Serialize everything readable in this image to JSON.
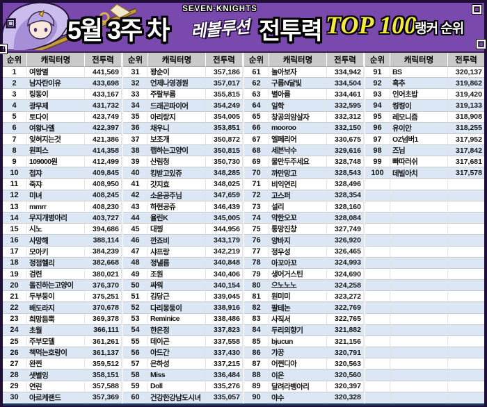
{
  "banner": {
    "week": "5월 3주 차",
    "logo_line1": "SEVEN·KNIGHTS",
    "logo_line2": "레볼루션",
    "metric": "전투력",
    "top": "TOP 100",
    "suffix": "랭커 순위"
  },
  "colors": {
    "banner_bg": "#7a49ae",
    "frame": "#1f0e35",
    "header_bg": "#c9c9c9",
    "row_alt_bg": "#dbe7f4",
    "top_accent": "#f3ea3d",
    "table_bottom_border": "#1b3a68"
  },
  "table": {
    "headers": [
      "순위",
      "캐릭터명",
      "전투력"
    ],
    "visible_rows": 30,
    "entries": [
      {
        "rank": "1",
        "name": "여왕별",
        "power": "441,569"
      },
      {
        "rank": "2",
        "name": "남자란이유",
        "power": "433,698"
      },
      {
        "rank": "3",
        "name": "링동이",
        "power": "433,167"
      },
      {
        "rank": "4",
        "name": "광무제",
        "power": "431,732"
      },
      {
        "rank": "5",
        "name": "토다이",
        "power": "423,749"
      },
      {
        "rank": "6",
        "name": "여왕나엘",
        "power": "422,397"
      },
      {
        "rank": "7",
        "name": "잊혀지는것",
        "power": "421,386"
      },
      {
        "rank": "8",
        "name": "원피스",
        "power": "414,358"
      },
      {
        "rank": "9",
        "name": "109000원",
        "power": "412,499"
      },
      {
        "rank": "10",
        "name": "접쟈",
        "power": "409,845"
      },
      {
        "rank": "11",
        "name": "죽쟈",
        "power": "408,950"
      },
      {
        "rank": "12",
        "name": "미녀",
        "power": "408,245"
      },
      {
        "rank": "13",
        "name": "mmrr",
        "power": "408,230"
      },
      {
        "rank": "14",
        "name": "무지개병아리",
        "power": "403,727"
      },
      {
        "rank": "15",
        "name": "시노",
        "power": "394,686"
      },
      {
        "rank": "16",
        "name": "사망해",
        "power": "388,114"
      },
      {
        "rank": "17",
        "name": "모아키",
        "power": "384,239"
      },
      {
        "rank": "18",
        "name": "정점헬리",
        "power": "382,668"
      },
      {
        "rank": "19",
        "name": "검련",
        "power": "380,021"
      },
      {
        "rank": "20",
        "name": "돌진하는고양이",
        "power": "376,370"
      },
      {
        "rank": "21",
        "name": "두부둥이",
        "power": "375,251"
      },
      {
        "rank": "22",
        "name": "배도라지",
        "power": "370,678"
      },
      {
        "rank": "23",
        "name": "희망듬뿍",
        "power": "369,378"
      },
      {
        "rank": "24",
        "name": "초월",
        "power": "366,111"
      },
      {
        "rank": "25",
        "name": "주부모델",
        "power": "361,261"
      },
      {
        "rank": "26",
        "name": "책먹는호랑이",
        "power": "361,137"
      },
      {
        "rank": "27",
        "name": "완찐",
        "power": "359,512"
      },
      {
        "rank": "28",
        "name": "샛별잉",
        "power": "358,151"
      },
      {
        "rank": "29",
        "name": "연린",
        "power": "357,588"
      },
      {
        "rank": "30",
        "name": "아르케랜드",
        "power": "357,369"
      },
      {
        "rank": "31",
        "name": "꽝순이",
        "power": "357,186"
      },
      {
        "rank": "32",
        "name": "언제나영경원",
        "power": "357,017"
      },
      {
        "rank": "33",
        "name": "주랄부름",
        "power": "355,815"
      },
      {
        "rank": "34",
        "name": "드래곤파이어",
        "power": "354,249"
      },
      {
        "rank": "35",
        "name": "아리랑지",
        "power": "354,005"
      },
      {
        "rank": "36",
        "name": "채우니",
        "power": "353,851"
      },
      {
        "rank": "37",
        "name": "보조개",
        "power": "350,872"
      },
      {
        "rank": "38",
        "name": "랩하는고양이",
        "power": "350,815"
      },
      {
        "rank": "39",
        "name": "산림청",
        "power": "350,730"
      },
      {
        "rank": "40",
        "name": "킹받고있쥬",
        "power": "348,285"
      },
      {
        "rank": "41",
        "name": "갓지효",
        "power": "348,025"
      },
      {
        "rank": "42",
        "name": "소윤공주님",
        "power": "347,659"
      },
      {
        "rank": "43",
        "name": "하현공쥬",
        "power": "346,439"
      },
      {
        "rank": "44",
        "name": "율린K",
        "power": "345,005"
      },
      {
        "rank": "45",
        "name": "대찡",
        "power": "344,956"
      },
      {
        "rank": "46",
        "name": "깐죠비",
        "power": "343,179"
      },
      {
        "rank": "47",
        "name": "샤프랑",
        "power": "342,219"
      },
      {
        "rank": "48",
        "name": "정낼름",
        "power": "340,848"
      },
      {
        "rank": "49",
        "name": "조원",
        "power": "340,406"
      },
      {
        "rank": "50",
        "name": "싸워",
        "power": "340,154"
      },
      {
        "rank": "51",
        "name": "김당근",
        "power": "339,045"
      },
      {
        "rank": "52",
        "name": "다리몽둥이",
        "power": "338,916"
      },
      {
        "rank": "53",
        "name": "Reminice",
        "power": "338,486"
      },
      {
        "rank": "54",
        "name": "한은정",
        "power": "337,823"
      },
      {
        "rank": "55",
        "name": "데이곤",
        "power": "337,558"
      },
      {
        "rank": "56",
        "name": "아드간",
        "power": "337,430"
      },
      {
        "rank": "57",
        "name": "은하성",
        "power": "337,215"
      },
      {
        "rank": "58",
        "name": "Miss",
        "power": "336,484"
      },
      {
        "rank": "59",
        "name": "Doll",
        "power": "335,276"
      },
      {
        "rank": "60",
        "name": "건강한강남도시녀",
        "power": "335,057"
      },
      {
        "rank": "61",
        "name": "놀아보자",
        "power": "334,942"
      },
      {
        "rank": "62",
        "name": "구름N달빛",
        "power": "334,504"
      },
      {
        "rank": "63",
        "name": "별아름",
        "power": "334,461"
      },
      {
        "rank": "64",
        "name": "일학",
        "power": "332,595"
      },
      {
        "rank": "65",
        "name": "창공의암살자",
        "power": "332,312"
      },
      {
        "rank": "66",
        "name": "mooroo",
        "power": "332,150"
      },
      {
        "rank": "67",
        "name": "엘페리어",
        "power": "330,675"
      },
      {
        "rank": "68",
        "name": "세븐낙수",
        "power": "329,616"
      },
      {
        "rank": "69",
        "name": "물만두주세요",
        "power": "328,748"
      },
      {
        "rank": "70",
        "name": "까만망고",
        "power": "328,543"
      },
      {
        "rank": "71",
        "name": "비익연리",
        "power": "328,496"
      },
      {
        "rank": "72",
        "name": "고스퍼",
        "power": "328,354"
      },
      {
        "rank": "73",
        "name": "설리",
        "power": "328,160"
      },
      {
        "rank": "74",
        "name": "약한오꼬",
        "power": "328,084"
      },
      {
        "rank": "75",
        "name": "퉁망진창",
        "power": "327,749"
      },
      {
        "rank": "76",
        "name": "양바지",
        "power": "326,920"
      },
      {
        "rank": "77",
        "name": "정우성",
        "power": "326,465"
      },
      {
        "rank": "78",
        "name": "아꼬아꼬",
        "power": "324,993"
      },
      {
        "rank": "79",
        "name": "생어거스틴",
        "power": "324,690"
      },
      {
        "rank": "80",
        "name": "으노노노",
        "power": "324,258"
      },
      {
        "rank": "81",
        "name": "원미미",
        "power": "323,272"
      },
      {
        "rank": "82",
        "name": "팔테논",
        "power": "322,769"
      },
      {
        "rank": "83",
        "name": "사직서",
        "power": "322,765"
      },
      {
        "rank": "84",
        "name": "두리의향기",
        "power": "321,882"
      },
      {
        "rank": "85",
        "name": "bjucun",
        "power": "321,156"
      },
      {
        "rank": "86",
        "name": "갸꿍",
        "power": "320,791"
      },
      {
        "rank": "87",
        "name": "어쩐디아",
        "power": "320,563"
      },
      {
        "rank": "88",
        "name": "이온",
        "power": "320,560"
      },
      {
        "rank": "89",
        "name": "달려라뱅아리",
        "power": "320,397"
      },
      {
        "rank": "90",
        "name": "야수",
        "power": "320,328"
      },
      {
        "rank": "91",
        "name": "BS",
        "power": "320,137"
      },
      {
        "rank": "92",
        "name": "흑추",
        "power": "319,862"
      },
      {
        "rank": "93",
        "name": "인어초밥",
        "power": "319,420"
      },
      {
        "rank": "94",
        "name": "켱켱이",
        "power": "319,133"
      },
      {
        "rank": "95",
        "name": "레모니즘",
        "power": "318,908"
      },
      {
        "rank": "96",
        "name": "유이안",
        "power": "318,255"
      },
      {
        "rank": "97",
        "name": "OZ넘버1",
        "power": "317,952"
      },
      {
        "rank": "98",
        "name": "즈님",
        "power": "317,842"
      },
      {
        "rank": "99",
        "name": "빠따러쉬",
        "power": "317,681"
      },
      {
        "rank": "100",
        "name": "데빌아치",
        "power": "317,578"
      }
    ]
  }
}
